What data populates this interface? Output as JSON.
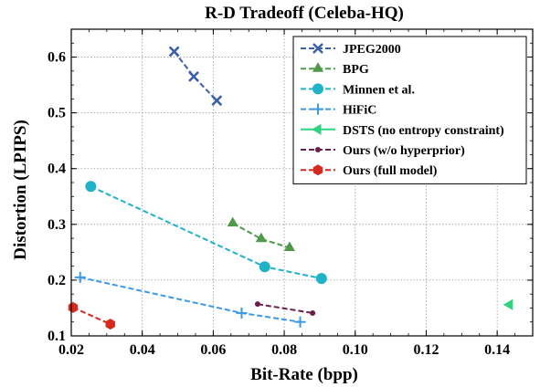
{
  "chart_data": {
    "type": "line",
    "title": "R-D Tradeoff (Celeba-HQ)",
    "xlabel": "Bit-Rate (bpp)",
    "ylabel": "Distortion (LPIPS)",
    "xlim": [
      0.02,
      0.15
    ],
    "ylim": [
      0.1,
      0.65
    ],
    "x_ticks": [
      0.02,
      0.04,
      0.06,
      0.08,
      0.1,
      0.12,
      0.14
    ],
    "x_tick_labels": [
      "0.02",
      "0.04",
      "0.06",
      "0.08",
      "0.10",
      "0.12",
      "0.14"
    ],
    "y_ticks": [
      0.1,
      0.2,
      0.3,
      0.4,
      0.5,
      0.6
    ],
    "y_tick_labels": [
      "0.1",
      "0.2",
      "0.3",
      "0.4",
      "0.5",
      "0.6"
    ],
    "grid": true,
    "legend_position": "top-right",
    "series": [
      {
        "name": "JPEG2000",
        "color": "#3b5fa8",
        "marker": "x",
        "dashed": true,
        "x": [
          0.049,
          0.0545,
          0.061
        ],
        "y": [
          0.61,
          0.565,
          0.522
        ]
      },
      {
        "name": "BPG",
        "color": "#4e9a4a",
        "marker": "triangle-up",
        "dashed": true,
        "x": [
          0.0655,
          0.0735,
          0.0815
        ],
        "y": [
          0.302,
          0.274,
          0.258
        ]
      },
      {
        "name": "Minnen et al.",
        "color": "#1fb2c8",
        "marker": "circle",
        "dashed": true,
        "x": [
          0.0255,
          0.0745,
          0.0905
        ],
        "y": [
          0.368,
          0.224,
          0.203
        ]
      },
      {
        "name": "HiFiC",
        "color": "#3b99e6",
        "marker": "plus",
        "dashed": true,
        "x": [
          0.0225,
          0.068,
          0.0845
        ],
        "y": [
          0.205,
          0.141,
          0.125
        ]
      },
      {
        "name": "DSTS (no entropy constraint)",
        "color": "#2ed47f",
        "marker": "triangle-left",
        "dashed": false,
        "x": [
          0.1435
        ],
        "y": [
          0.156
        ]
      },
      {
        "name": "Ours (w/o hyperprior)",
        "color": "#6b1f4e",
        "marker": "small-circle",
        "dashed": true,
        "x": [
          0.0725,
          0.088
        ],
        "y": [
          0.157,
          0.141
        ]
      },
      {
        "name": "Ours (full model)",
        "color": "#d62a1e",
        "marker": "hexagon",
        "dashed": true,
        "x": [
          0.0205,
          0.031
        ],
        "y": [
          0.151,
          0.121
        ]
      }
    ]
  }
}
